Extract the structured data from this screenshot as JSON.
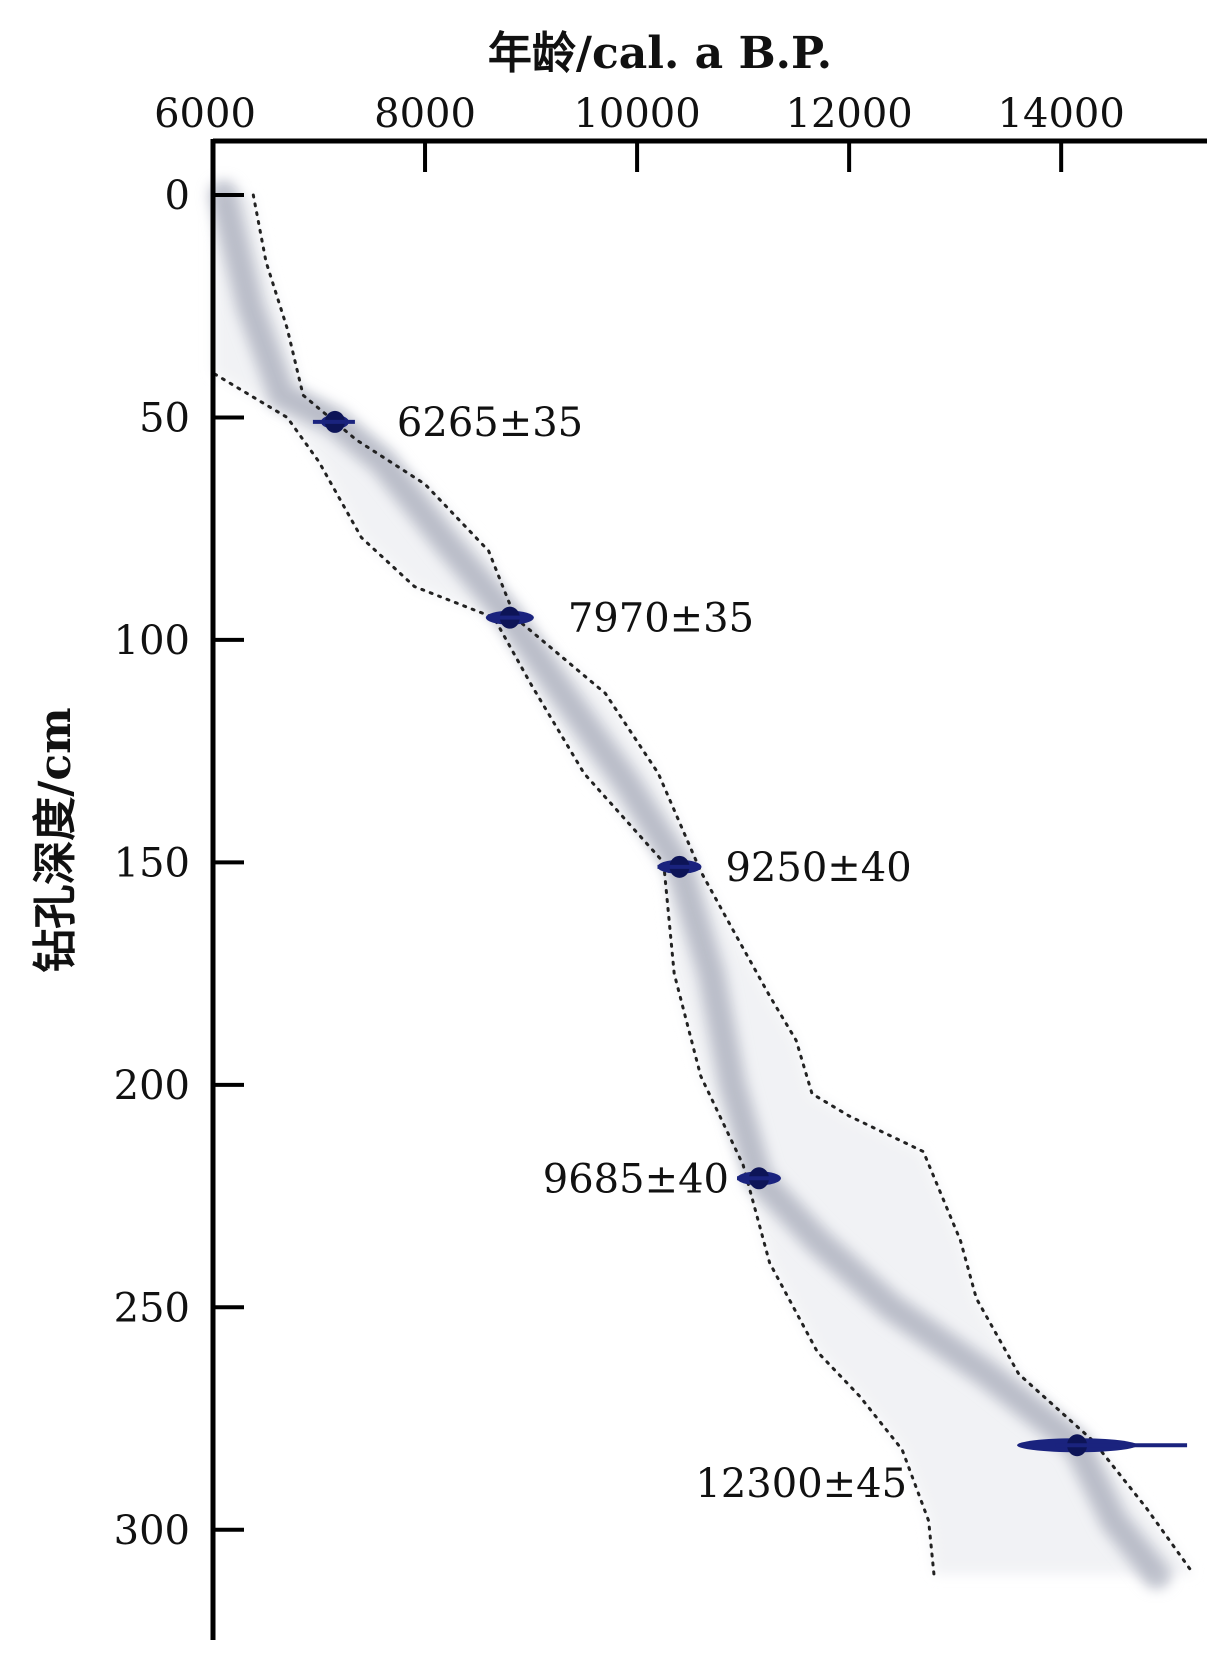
{
  "chart_data": {
    "type": "scatter",
    "title": "",
    "xlabel": "年龄/cal. a B.P.",
    "ylabel": "钻孔深度/cm",
    "xlim": [
      6000,
      15300
    ],
    "ylim": [
      0,
      325
    ],
    "x_ticks": [
      "6000",
      "8000",
      "10000",
      "12000",
      "14000"
    ],
    "x_tick_values": [
      6000,
      8000,
      10000,
      12000,
      14000
    ],
    "y_ticks": [
      "0",
      "50",
      "100",
      "150",
      "200",
      "250",
      "300"
    ],
    "y_tick_values": [
      0,
      50,
      100,
      150,
      200,
      250,
      300
    ],
    "x_axis_position": "top",
    "grid": false,
    "legend": "none",
    "dated_samples": [
      {
        "label": "6265±35",
        "age": 7150,
        "depth": 51
      },
      {
        "label": "7970±35",
        "age": 8800,
        "depth": 95
      },
      {
        "label": "9250±40",
        "age": 10400,
        "depth": 151
      },
      {
        "label": "9685±40",
        "age": 11150,
        "depth": 221
      },
      {
        "label": "12300±45",
        "age": 14150,
        "depth": 281
      }
    ],
    "age_model_median": [
      [
        6100,
        0
      ],
      [
        6350,
        25
      ],
      [
        6650,
        45
      ],
      [
        7150,
        51
      ],
      [
        7600,
        60
      ],
      [
        8200,
        78
      ],
      [
        8800,
        95
      ],
      [
        9300,
        112
      ],
      [
        9900,
        132
      ],
      [
        10400,
        151
      ],
      [
        10700,
        175
      ],
      [
        10900,
        200
      ],
      [
        11150,
        221
      ],
      [
        11700,
        235
      ],
      [
        12400,
        250
      ],
      [
        13300,
        265
      ],
      [
        14150,
        281
      ],
      [
        14500,
        298
      ],
      [
        14900,
        310
      ]
    ],
    "envelope_upper": [
      [
        6380,
        0
      ],
      [
        6500,
        15
      ],
      [
        6700,
        30
      ],
      [
        6850,
        45
      ],
      [
        7350,
        55
      ],
      [
        8000,
        65
      ],
      [
        8600,
        80
      ],
      [
        8850,
        95
      ],
      [
        9700,
        112
      ],
      [
        10200,
        130
      ],
      [
        10600,
        152
      ],
      [
        10900,
        165
      ],
      [
        11250,
        180
      ],
      [
        11500,
        190
      ],
      [
        11650,
        202
      ],
      [
        12000,
        207
      ],
      [
        12700,
        215
      ],
      [
        13050,
        235
      ],
      [
        13200,
        248
      ],
      [
        13600,
        265
      ],
      [
        14300,
        280
      ],
      [
        14800,
        295
      ],
      [
        15250,
        310
      ]
    ],
    "envelope_lower": [
      [
        6000,
        0
      ],
      [
        6000,
        20
      ],
      [
        6000,
        40
      ],
      [
        6700,
        50
      ],
      [
        7000,
        60
      ],
      [
        7400,
        77
      ],
      [
        7900,
        88
      ],
      [
        8650,
        95
      ],
      [
        9000,
        110
      ],
      [
        9500,
        130
      ],
      [
        10250,
        150
      ],
      [
        10350,
        175
      ],
      [
        10600,
        198
      ],
      [
        11000,
        218
      ],
      [
        11250,
        240
      ],
      [
        11700,
        260
      ],
      [
        12100,
        270
      ],
      [
        12500,
        282
      ],
      [
        12750,
        298
      ],
      [
        12800,
        310
      ]
    ]
  }
}
